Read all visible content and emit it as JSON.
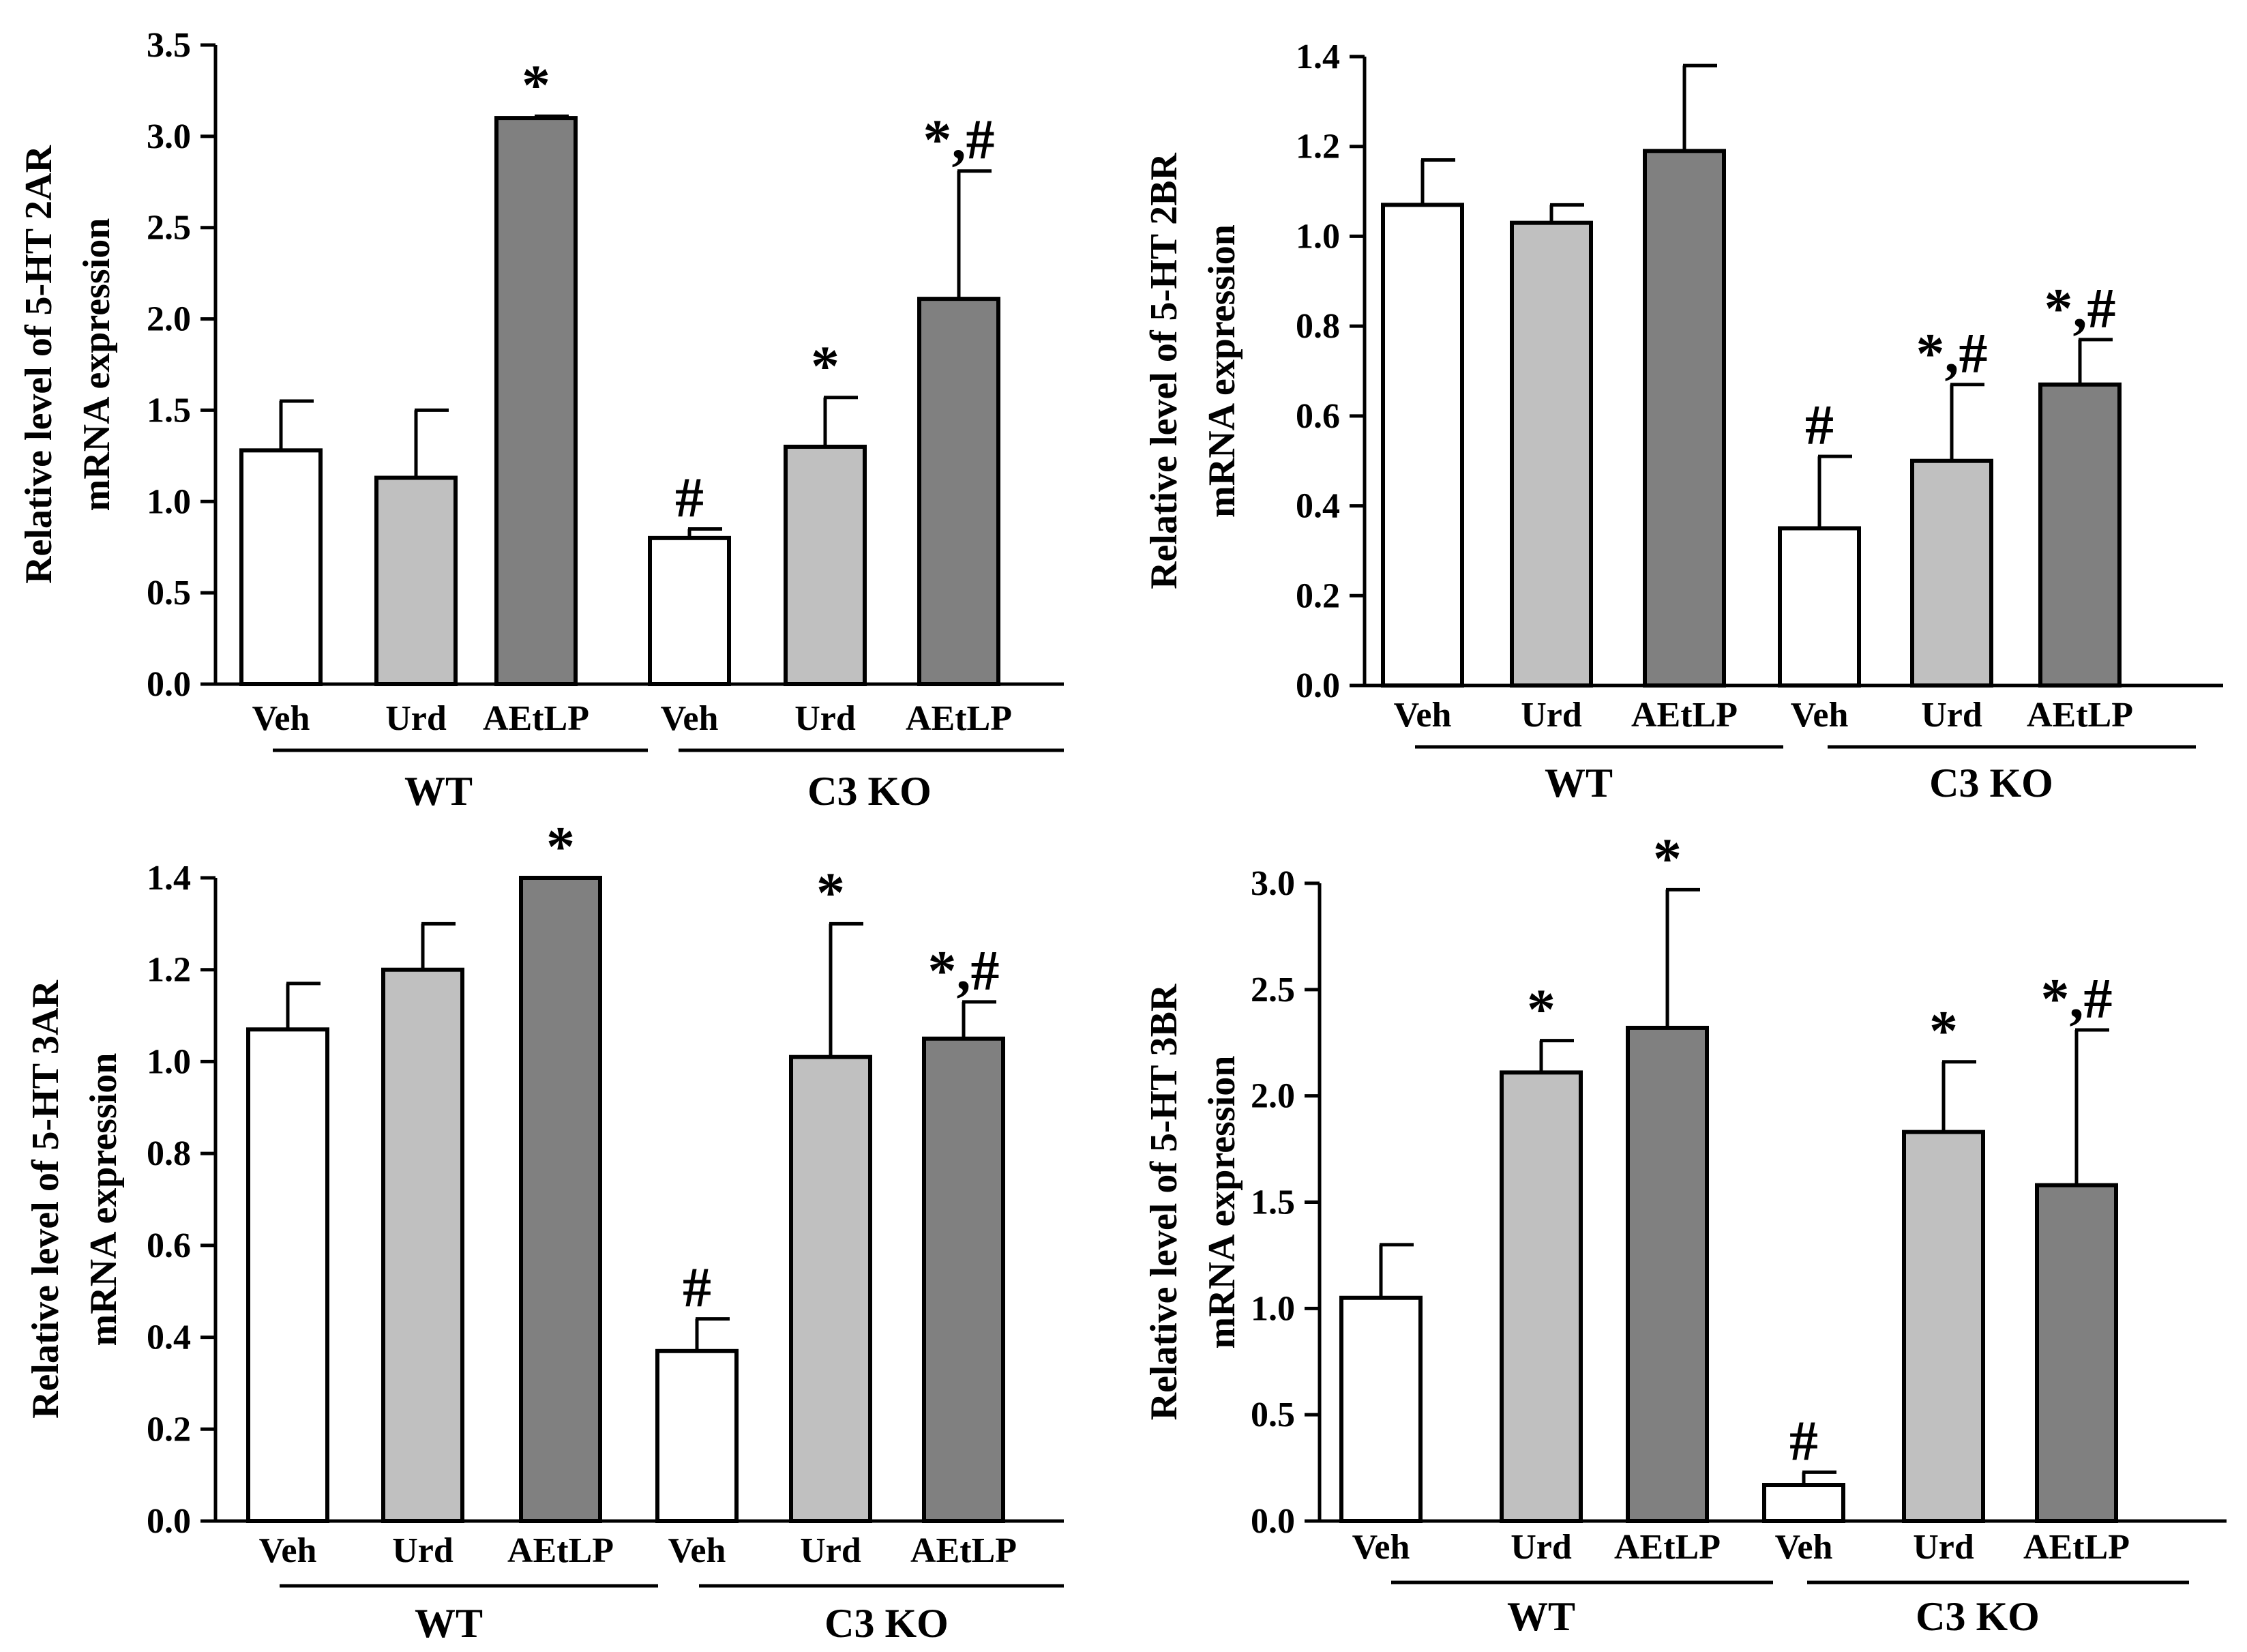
{
  "colors": {
    "veh": "#ffffff",
    "urd": "#c0c0c0",
    "aetlp": "#808080",
    "stroke": "#000000"
  },
  "chart_data": [
    {
      "type": "bar",
      "panel": "top-left",
      "ylabel_line1": "Relative level of 5-HT 2AR",
      "ylabel_line2": "mRNA  expression",
      "ylim": [
        0,
        3.5
      ],
      "yticks": [
        "0.0",
        "0.5",
        "1.0",
        "1.5",
        "2.0",
        "2.5",
        "3.0",
        "3.5"
      ],
      "categories": [
        "Veh",
        "Urd",
        "AEtLP",
        "Veh",
        "Urd",
        "AEtLP"
      ],
      "groups": [
        "WT",
        "C3 KO"
      ],
      "values": [
        1.28,
        1.13,
        3.1,
        0.8,
        1.3,
        2.11
      ],
      "errors": [
        0.27,
        0.37,
        0.01,
        0.05,
        0.27,
        0.7
      ],
      "annotations": [
        "",
        "",
        "*",
        "#",
        "*",
        "*,#"
      ]
    },
    {
      "type": "bar",
      "panel": "top-right",
      "ylabel_line1": "Relative level of 5-HT 2BR",
      "ylabel_line2": "mRNA  expression",
      "ylim": [
        0,
        1.4
      ],
      "yticks": [
        "0.0",
        "0.2",
        "0.4",
        "0.6",
        "0.8",
        "1.0",
        "1.2",
        "1.4"
      ],
      "categories": [
        "Veh",
        "Urd",
        "AEtLP",
        "Veh",
        "Urd",
        "AEtLP"
      ],
      "groups": [
        "WT",
        "C3 KO"
      ],
      "values": [
        1.07,
        1.03,
        1.19,
        0.35,
        0.5,
        0.67
      ],
      "errors": [
        0.1,
        0.04,
        0.19,
        0.16,
        0.17,
        0.1
      ],
      "annotations": [
        "",
        "",
        "",
        "#",
        "*,#",
        "*,#"
      ]
    },
    {
      "type": "bar",
      "panel": "bottom-left",
      "ylabel_line1": "Relative level of 5-HT 3AR",
      "ylabel_line2": "mRNA  expression",
      "ylim": [
        0,
        1.4
      ],
      "yticks": [
        "0.0",
        "0.2",
        "0.4",
        "0.6",
        "0.8",
        "1.0",
        "1.2",
        "1.4"
      ],
      "categories": [
        "Veh",
        "Urd",
        "AEtLP",
        "Veh",
        "Urd",
        "AEtLP"
      ],
      "groups": [
        "WT",
        "C3 KO"
      ],
      "values": [
        1.07,
        1.2,
        1.4,
        0.37,
        1.01,
        1.05
      ],
      "errors": [
        0.1,
        0.1,
        0.0,
        0.07,
        0.29,
        0.08
      ],
      "annotations": [
        "",
        "",
        "*",
        "#",
        "*",
        "*,#"
      ]
    },
    {
      "type": "bar",
      "panel": "bottom-right",
      "ylabel_line1": "Relative level of 5-HT 3BR",
      "ylabel_line2": "mRNA  expression",
      "ylim": [
        0,
        3.0
      ],
      "yticks": [
        "0.0",
        "0.5",
        "1.0",
        "1.5",
        "2.0",
        "2.5",
        "3.0"
      ],
      "categories": [
        "Veh",
        "Urd",
        "AEtLP",
        "Veh",
        "Urd",
        "AEtLP"
      ],
      "groups": [
        "WT",
        "C3 KO"
      ],
      "values": [
        1.05,
        2.11,
        2.32,
        0.17,
        1.83,
        1.58
      ],
      "errors": [
        0.25,
        0.15,
        0.65,
        0.06,
        0.33,
        0.73
      ],
      "annotations": [
        "",
        "*",
        "*",
        "#",
        "*",
        "*,#"
      ]
    }
  ]
}
